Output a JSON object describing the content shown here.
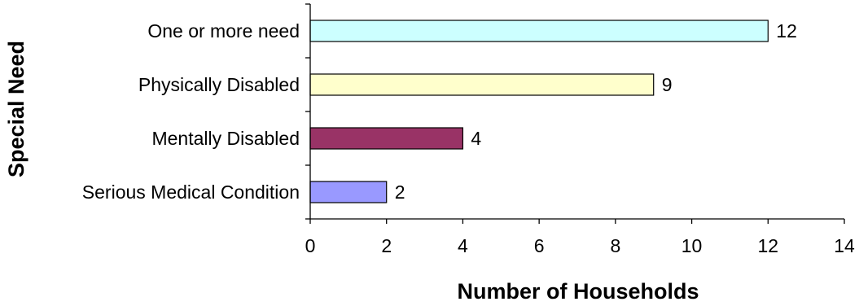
{
  "chart_data": {
    "type": "bar",
    "orientation": "horizontal",
    "categories": [
      "One or more need",
      "Physically Disabled",
      "Mentally Disabled",
      "Serious Medical Condition"
    ],
    "values": [
      12,
      9,
      4,
      2
    ],
    "bar_colors": [
      "#ccffff",
      "#ffffcc",
      "#993366",
      "#9999ff"
    ],
    "xlabel": "Number of Households",
    "ylabel": "Special Need",
    "xlim": [
      0,
      14
    ],
    "xticks": [
      0,
      2,
      4,
      6,
      8,
      10,
      12,
      14
    ],
    "grid": false,
    "legend": "none",
    "data_labels": true
  }
}
